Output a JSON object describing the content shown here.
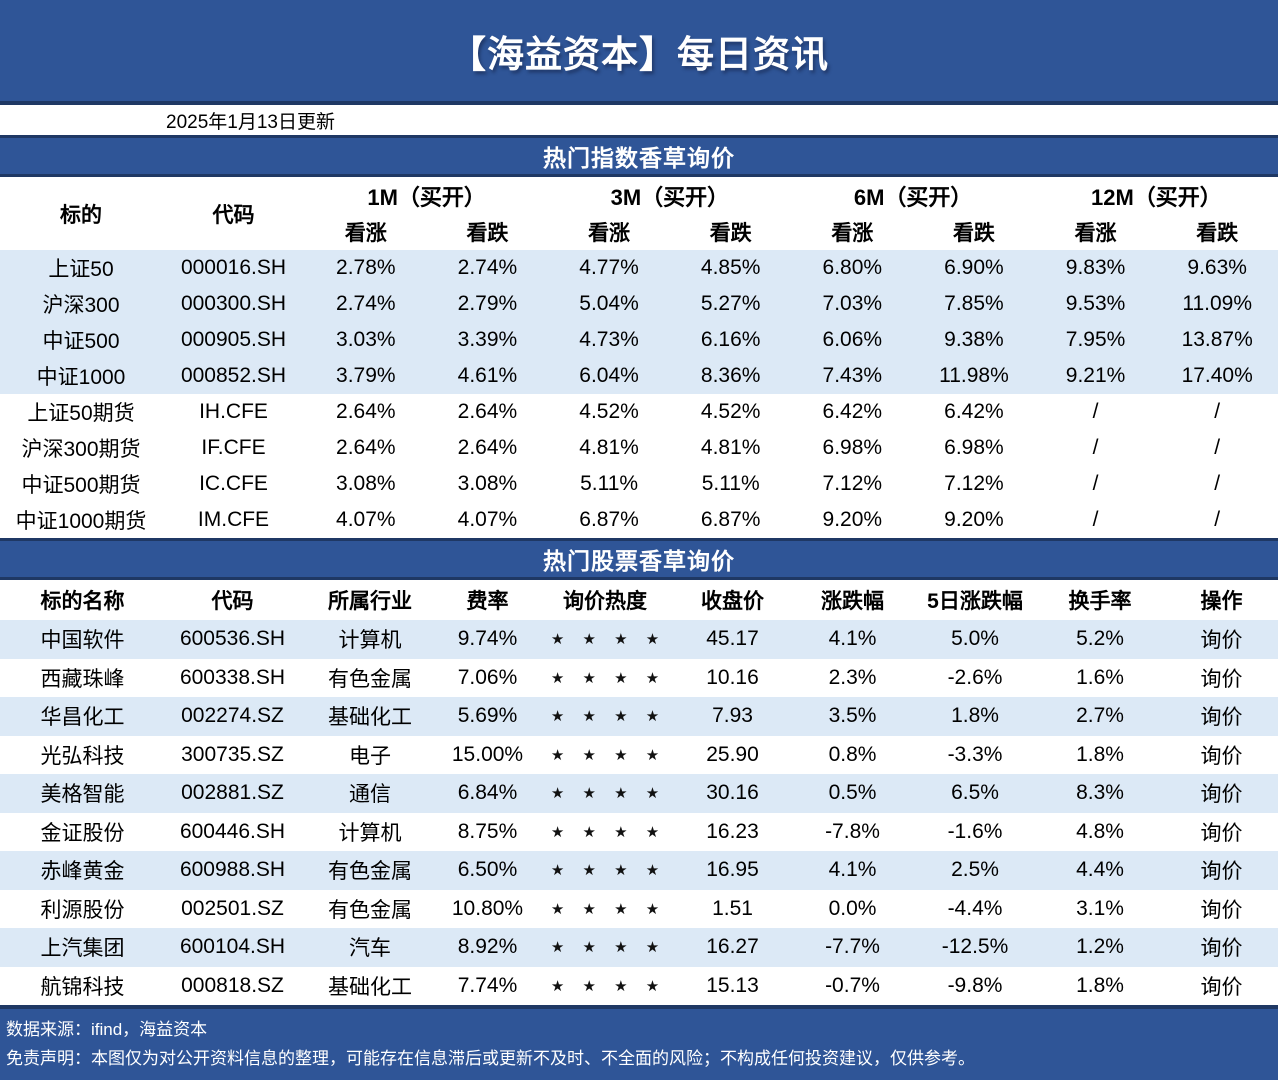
{
  "banner": {
    "title": "【海益资本】每日资讯",
    "date_note": "2025年1月13日更新"
  },
  "index_section": {
    "title": "热门指数香草询价",
    "col_target": "标的",
    "col_code": "代码",
    "tenor_groups": [
      "1M（买开）",
      "3M（买开）",
      "6M（买开）",
      "12M（买开）"
    ],
    "sub_up": "看涨",
    "sub_down": "看跌",
    "rows": [
      {
        "target": "上证50",
        "code": "000016.SH",
        "values": [
          "2.78%",
          "2.74%",
          "4.77%",
          "4.85%",
          "6.80%",
          "6.90%",
          "9.83%",
          "9.63%"
        ]
      },
      {
        "target": "沪深300",
        "code": "000300.SH",
        "values": [
          "2.74%",
          "2.79%",
          "5.04%",
          "5.27%",
          "7.03%",
          "7.85%",
          "9.53%",
          "11.09%"
        ]
      },
      {
        "target": "中证500",
        "code": "000905.SH",
        "values": [
          "3.03%",
          "3.39%",
          "4.73%",
          "6.16%",
          "6.06%",
          "9.38%",
          "7.95%",
          "13.87%"
        ]
      },
      {
        "target": "中证1000",
        "code": "000852.SH",
        "values": [
          "3.79%",
          "4.61%",
          "6.04%",
          "8.36%",
          "7.43%",
          "11.98%",
          "9.21%",
          "17.40%"
        ]
      },
      {
        "target": "上证50期货",
        "code": "IH.CFE",
        "values": [
          "2.64%",
          "2.64%",
          "4.52%",
          "4.52%",
          "6.42%",
          "6.42%",
          "/",
          "/"
        ]
      },
      {
        "target": "沪深300期货",
        "code": "IF.CFE",
        "values": [
          "2.64%",
          "2.64%",
          "4.81%",
          "4.81%",
          "6.98%",
          "6.98%",
          "/",
          "/"
        ]
      },
      {
        "target": "中证500期货",
        "code": "IC.CFE",
        "values": [
          "3.08%",
          "3.08%",
          "5.11%",
          "5.11%",
          "7.12%",
          "7.12%",
          "/",
          "/"
        ]
      },
      {
        "target": "中证1000期货",
        "code": "IM.CFE",
        "values": [
          "4.07%",
          "4.07%",
          "6.87%",
          "6.87%",
          "9.20%",
          "9.20%",
          "/",
          "/"
        ]
      }
    ]
  },
  "stock_section": {
    "title": "热门股票香草询价",
    "headers": [
      "标的名称",
      "代码",
      "所属行业",
      "费率",
      "询价热度",
      "收盘价",
      "涨跌幅",
      "5日涨跌幅",
      "换手率",
      "操作"
    ],
    "rating_star": "★",
    "rows": [
      {
        "name": "中国软件",
        "code": "600536.SH",
        "industry": "计算机",
        "fee": "9.74%",
        "rating": 4,
        "close": "45.17",
        "chg": "4.1%",
        "chg5d": "5.0%",
        "turnover": "5.2%",
        "action": "询价"
      },
      {
        "name": "西藏珠峰",
        "code": "600338.SH",
        "industry": "有色金属",
        "fee": "7.06%",
        "rating": 4,
        "close": "10.16",
        "chg": "2.3%",
        "chg5d": "-2.6%",
        "turnover": "1.6%",
        "action": "询价"
      },
      {
        "name": "华昌化工",
        "code": "002274.SZ",
        "industry": "基础化工",
        "fee": "5.69%",
        "rating": 4,
        "close": "7.93",
        "chg": "3.5%",
        "chg5d": "1.8%",
        "turnover": "2.7%",
        "action": "询价"
      },
      {
        "name": "光弘科技",
        "code": "300735.SZ",
        "industry": "电子",
        "fee": "15.00%",
        "rating": 4,
        "close": "25.90",
        "chg": "0.8%",
        "chg5d": "-3.3%",
        "turnover": "1.8%",
        "action": "询价"
      },
      {
        "name": "美格智能",
        "code": "002881.SZ",
        "industry": "通信",
        "fee": "6.84%",
        "rating": 4,
        "close": "30.16",
        "chg": "0.5%",
        "chg5d": "6.5%",
        "turnover": "8.3%",
        "action": "询价"
      },
      {
        "name": "金证股份",
        "code": "600446.SH",
        "industry": "计算机",
        "fee": "8.75%",
        "rating": 4,
        "close": "16.23",
        "chg": "-7.8%",
        "chg5d": "-1.6%",
        "turnover": "4.8%",
        "action": "询价"
      },
      {
        "name": "赤峰黄金",
        "code": "600988.SH",
        "industry": "有色金属",
        "fee": "6.50%",
        "rating": 4,
        "close": "16.95",
        "chg": "4.1%",
        "chg5d": "2.5%",
        "turnover": "4.4%",
        "action": "询价"
      },
      {
        "name": "利源股份",
        "code": "002501.SZ",
        "industry": "有色金属",
        "fee": "10.80%",
        "rating": 4,
        "close": "1.51",
        "chg": "0.0%",
        "chg5d": "-4.4%",
        "turnover": "3.1%",
        "action": "询价"
      },
      {
        "name": "上汽集团",
        "code": "600104.SH",
        "industry": "汽车",
        "fee": "8.92%",
        "rating": 4,
        "close": "16.27",
        "chg": "-7.7%",
        "chg5d": "-12.5%",
        "turnover": "1.2%",
        "action": "询价"
      },
      {
        "name": "航锦科技",
        "code": "000818.SZ",
        "industry": "基础化工",
        "fee": "7.74%",
        "rating": 4,
        "close": "15.13",
        "chg": "-0.7%",
        "chg5d": "-9.8%",
        "turnover": "1.8%",
        "action": "询价"
      }
    ]
  },
  "footer": {
    "source": "数据来源：ifind，海益资本",
    "disclaimer": "免责声明：本图仅为对公开资料信息的整理，可能存在信息滞后或更新不及时、不全面的风险；不构成任何投资建议，仅供参考。"
  },
  "colors": {
    "banner_blue": "#2F5597",
    "divider_navy": "#1F3864",
    "band_blue": "#DCE9F6"
  }
}
